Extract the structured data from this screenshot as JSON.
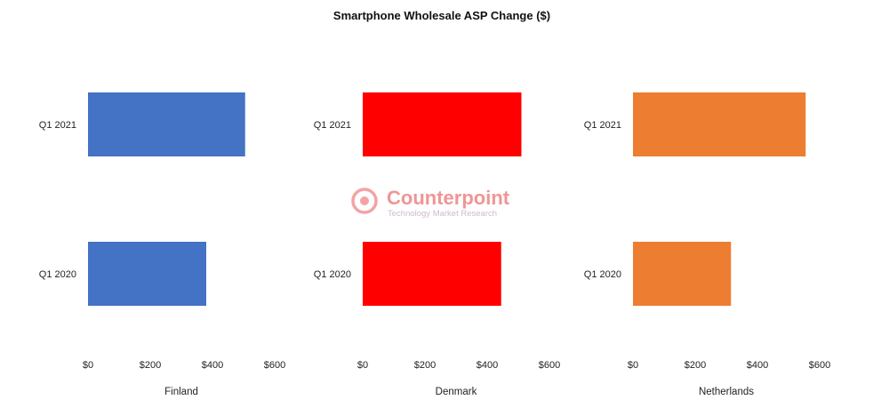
{
  "chart_data": {
    "type": "bar",
    "orientation": "horizontal",
    "title": "Smartphone Wholesale ASP Change ($)",
    "categories": [
      "Q1 2021",
      "Q1 2020"
    ],
    "x_ticks": [
      "$0",
      "$200",
      "$400",
      "$600"
    ],
    "xlim": [
      0,
      600
    ],
    "grid": false,
    "legend": "none",
    "panels": [
      {
        "name": "Finland",
        "color": "#4472c4",
        "values": [
          505,
          380
        ]
      },
      {
        "name": "Denmark",
        "color": "#ff0000",
        "values": [
          510,
          445
        ]
      },
      {
        "name": "Netherlands",
        "color": "#ed7d31",
        "values": [
          555,
          315
        ]
      }
    ]
  },
  "watermark": {
    "brand": "Counterpoint",
    "tagline": "Technology Market Research",
    "icon": "counterpoint-logo-icon"
  }
}
